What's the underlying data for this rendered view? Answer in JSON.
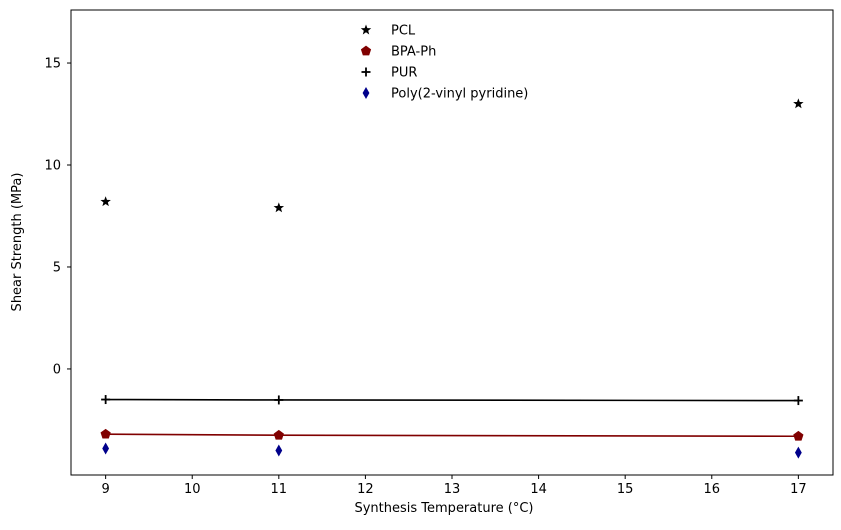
{
  "chart_data": {
    "type": "scatter",
    "title": "",
    "xlabel": "Synthesis Temperature (°C)",
    "ylabel": "Shear Strength (MPa)",
    "xlim": [
      8.6,
      17.4
    ],
    "ylim": [
      -5.2,
      17.6
    ],
    "xticks": [
      9,
      10,
      11,
      12,
      13,
      14,
      15,
      16,
      17
    ],
    "yticks": [
      0,
      5,
      10,
      15
    ],
    "grid": false,
    "legend_position": "top-center",
    "series": [
      {
        "name": "PCL",
        "marker": "star",
        "color": "#000000",
        "line": false,
        "x": [
          9,
          11,
          17
        ],
        "y": [
          8.2,
          7.9,
          13.0
        ]
      },
      {
        "name": "BPA-Ph",
        "marker": "pentagon",
        "color": "#800000",
        "line": true,
        "x": [
          9,
          11,
          17
        ],
        "y": [
          -3.2,
          -3.25,
          -3.3
        ]
      },
      {
        "name": "PUR",
        "marker": "plus",
        "color": "#000000",
        "line": true,
        "x": [
          9,
          11,
          17
        ],
        "y": [
          -1.5,
          -1.52,
          -1.55
        ]
      },
      {
        "name": "Poly(2-vinyl pyridine)",
        "marker": "thin_diamond",
        "color": "#00008b",
        "line": false,
        "x": [
          9,
          11,
          17
        ],
        "y": [
          -3.9,
          -4.0,
          -4.1
        ]
      }
    ]
  }
}
